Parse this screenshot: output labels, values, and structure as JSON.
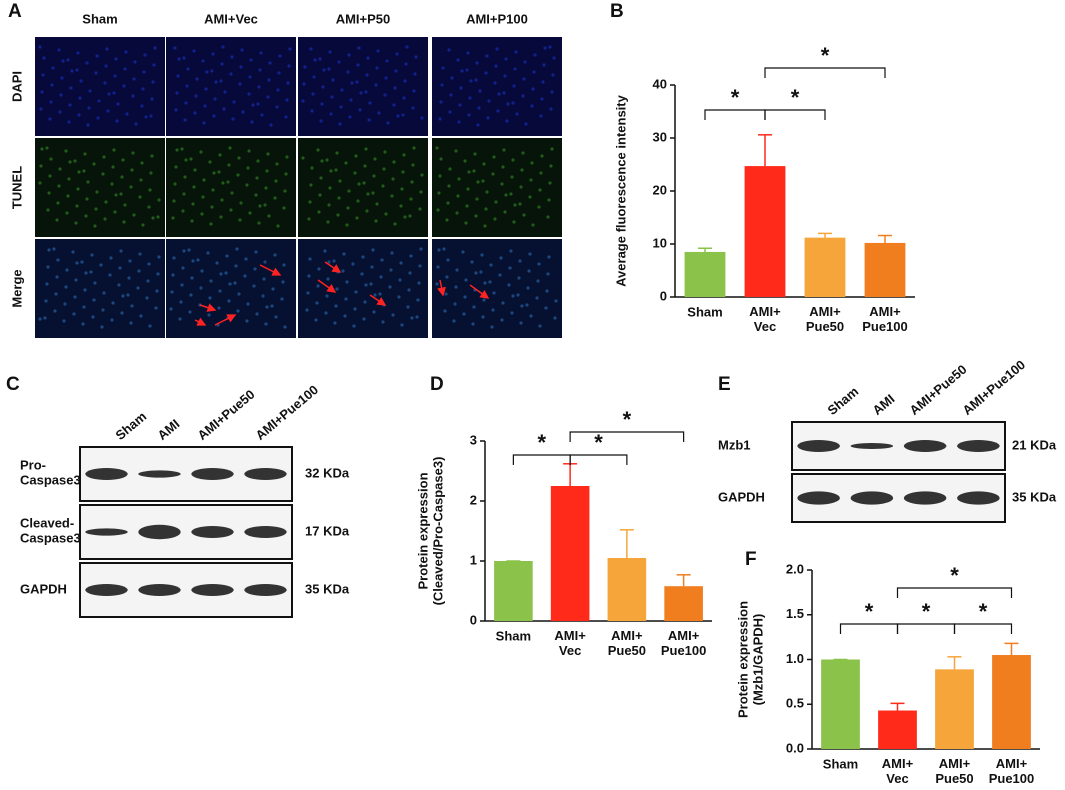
{
  "panel_a": {
    "letter": "A",
    "columns": [
      "Sham",
      "AMI+Vec",
      "AMI+P50",
      "AMI+P100"
    ],
    "rows": [
      "DAPI",
      "TUNEL",
      "Merge"
    ]
  },
  "panel_c": {
    "letter": "C",
    "lanes": [
      "Sham",
      "AMI",
      "AMI+Pue50",
      "AMI+Pue100"
    ],
    "rows": [
      {
        "label": "Pro-\nCaspase3",
        "size": "32 KDa"
      },
      {
        "label": "Cleaved-\nCaspase3",
        "size": "17 KDa"
      },
      {
        "label": "GAPDH",
        "size": "35 KDa"
      }
    ]
  },
  "panel_e": {
    "letter": "E",
    "lanes": [
      "Sham",
      "AMI",
      "AMI+Pue50",
      "AMI+Pue100"
    ],
    "rows": [
      {
        "label": "Mzb1",
        "size": "21 KDa"
      },
      {
        "label": "GAPDH",
        "size": "35 KDa"
      }
    ]
  },
  "chart_data": [
    {
      "type": "bar",
      "letter": "B",
      "y_label": "Average fluorescence intensity",
      "categories": [
        "Sham",
        "AMI+\nVec",
        "AMI+\nPue50",
        "AMI+\nPue100"
      ],
      "values": [
        8.5,
        24.7,
        11.2,
        10.2
      ],
      "errors": [
        0.7,
        5.9,
        0.8,
        1.4
      ],
      "colors": [
        "#8bc34a",
        "#ff2a1a",
        "#f5a53a",
        "#f07d1e"
      ],
      "ylim": [
        0,
        40
      ],
      "yticks": [
        0,
        10,
        20,
        30,
        40
      ],
      "significance": [
        {
          "pair": [
            0,
            1
          ],
          "label": "*"
        },
        {
          "pair": [
            1,
            2
          ],
          "label": "*"
        },
        {
          "pair": [
            1,
            3
          ],
          "label": "*"
        }
      ]
    },
    {
      "type": "bar",
      "letter": "D",
      "y_label": "Protein expression\n(Cleaved/Pro-Caspase3)",
      "categories": [
        "Sham",
        "AMI+\nVec",
        "AMI+\nPue50",
        "AMI+\nPue100"
      ],
      "values": [
        1.0,
        2.25,
        1.05,
        0.58
      ],
      "errors": [
        0,
        0.37,
        0.47,
        0.19
      ],
      "colors": [
        "#8bc34a",
        "#ff2a1a",
        "#f5a53a",
        "#f07d1e"
      ],
      "ylim": [
        0,
        3
      ],
      "yticks": [
        0,
        1,
        2,
        3
      ],
      "significance": [
        {
          "pair": [
            0,
            1
          ],
          "label": "*"
        },
        {
          "pair": [
            1,
            2
          ],
          "label": "*"
        },
        {
          "pair": [
            1,
            3
          ],
          "label": "*"
        }
      ]
    },
    {
      "type": "bar",
      "letter": "F",
      "y_label": "Protein expression\n(Mzb1/GAPDH)",
      "categories": [
        "Sham",
        "AMI+\nVec",
        "AMI+\nPue50",
        "AMI+\nPue100"
      ],
      "values": [
        1.0,
        0.43,
        0.89,
        1.05
      ],
      "errors": [
        0,
        0.08,
        0.14,
        0.13
      ],
      "colors": [
        "#8bc34a",
        "#ff2a1a",
        "#f5a53a",
        "#f07d1e"
      ],
      "ylim": [
        0,
        2
      ],
      "yticks": [
        {
          "value": 0,
          "label": "0.0"
        },
        {
          "value": 0.5,
          "label": "0.5"
        },
        {
          "value": 1,
          "label": "1.0"
        },
        {
          "value": 1.5,
          "label": "1.5"
        },
        {
          "value": 2,
          "label": "2.0"
        }
      ],
      "significance": [
        {
          "pair": [
            0,
            1
          ],
          "label": "*"
        },
        {
          "pair": [
            1,
            2
          ],
          "label": "*"
        },
        {
          "pair": [
            2,
            3
          ],
          "label": "*"
        },
        {
          "pair": [
            1,
            3
          ],
          "label": "*"
        }
      ]
    }
  ]
}
